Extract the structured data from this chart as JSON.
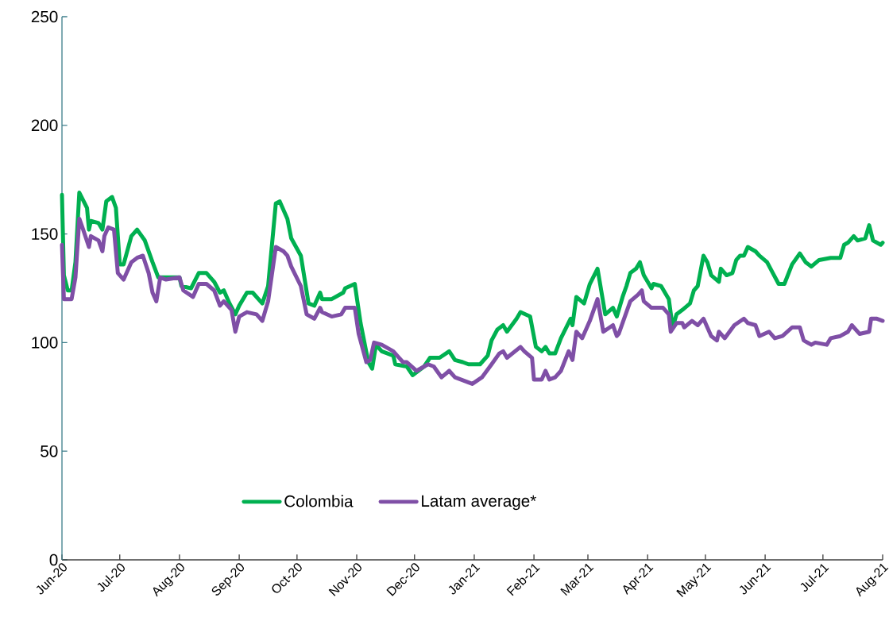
{
  "chart_data": {
    "type": "line",
    "ylim": [
      0,
      250
    ],
    "yticks": [
      0,
      50,
      100,
      150,
      200,
      250
    ],
    "xlim": [
      "2020-06-01",
      "2021-08-01"
    ],
    "xticks": [
      {
        "value": "2020-06-01",
        "label": "Jun-20"
      },
      {
        "value": "2020-07-01",
        "label": "Jul-20"
      },
      {
        "value": "2020-08-01",
        "label": "Aug-20"
      },
      {
        "value": "2020-09-01",
        "label": "Sep-20"
      },
      {
        "value": "2020-10-01",
        "label": "Oct-20"
      },
      {
        "value": "2020-11-01",
        "label": "Nov-20"
      },
      {
        "value": "2020-12-01",
        "label": "Dec-20"
      },
      {
        "value": "2021-01-01",
        "label": "Jan-21"
      },
      {
        "value": "2021-02-01",
        "label": "Feb-21"
      },
      {
        "value": "2021-03-01",
        "label": "Mar-21"
      },
      {
        "value": "2021-04-01",
        "label": "Apr-21"
      },
      {
        "value": "2021-05-01",
        "label": "May-21"
      },
      {
        "value": "2021-06-01",
        "label": "Jun-21"
      },
      {
        "value": "2021-07-01",
        "label": "Jul-21"
      },
      {
        "value": "2021-08-01",
        "label": "Aug-21"
      }
    ],
    "legend": "bottom",
    "line_style": "solid",
    "grid": false,
    "series": [
      {
        "name": "Colombia",
        "color": "#00b050",
        "x": [
          "2020-06-01",
          "2020-06-02",
          "2020-06-04",
          "2020-06-06",
          "2020-06-08",
          "2020-06-10",
          "2020-06-14",
          "2020-06-15",
          "2020-06-16",
          "2020-06-20",
          "2020-06-22",
          "2020-06-24",
          "2020-06-27",
          "2020-06-29",
          "2020-07-01",
          "2020-07-03",
          "2020-07-07",
          "2020-07-10",
          "2020-07-14",
          "2020-07-18",
          "2020-07-21",
          "2020-08-01",
          "2020-08-02",
          "2020-08-07",
          "2020-08-11",
          "2020-08-15",
          "2020-08-19",
          "2020-08-22",
          "2020-08-24",
          "2020-08-27",
          "2020-08-30",
          "2020-09-01",
          "2020-09-05",
          "2020-09-08",
          "2020-09-13",
          "2020-09-16",
          "2020-09-20",
          "2020-09-22",
          "2020-09-26",
          "2020-09-28",
          "2020-10-03",
          "2020-10-07",
          "2020-10-10",
          "2020-10-13",
          "2020-10-14",
          "2020-10-19",
          "2020-10-25",
          "2020-10-26",
          "2020-10-31",
          "2020-11-03",
          "2020-11-07",
          "2020-11-09",
          "2020-11-11",
          "2020-11-14",
          "2020-11-20",
          "2020-11-21",
          "2020-11-27",
          "2020-11-30",
          "2020-12-06",
          "2020-12-09",
          "2020-12-14",
          "2020-12-19",
          "2020-12-22",
          "2020-12-26",
          "2020-12-29",
          "2021-01-04",
          "2021-01-08",
          "2021-01-10",
          "2021-01-13",
          "2021-01-16",
          "2021-01-18",
          "2021-01-23",
          "2021-01-25",
          "2021-01-30",
          "2021-02-02",
          "2021-02-05",
          "2021-02-07",
          "2021-02-09",
          "2021-02-12",
          "2021-02-15",
          "2021-02-20",
          "2021-02-21",
          "2021-02-23",
          "2021-02-27",
          "2021-03-02",
          "2021-03-06",
          "2021-03-10",
          "2021-03-14",
          "2021-03-16",
          "2021-03-19",
          "2021-03-21",
          "2021-03-23",
          "2021-03-26",
          "2021-03-28",
          "2021-03-30",
          "2021-04-03",
          "2021-04-04",
          "2021-04-08",
          "2021-04-12",
          "2021-04-14",
          "2021-04-16",
          "2021-04-19",
          "2021-04-23",
          "2021-04-25",
          "2021-04-27",
          "2021-04-30",
          "2021-05-02",
          "2021-05-04",
          "2021-05-08",
          "2021-05-09",
          "2021-05-12",
          "2021-05-15",
          "2021-05-17",
          "2021-05-19",
          "2021-05-21",
          "2021-05-23",
          "2021-05-27",
          "2021-05-29",
          "2021-06-02",
          "2021-06-05",
          "2021-06-08",
          "2021-06-11",
          "2021-06-15",
          "2021-06-19",
          "2021-06-22",
          "2021-06-25",
          "2021-06-29",
          "2021-07-05",
          "2021-07-10",
          "2021-07-12",
          "2021-07-14",
          "2021-07-17",
          "2021-07-19",
          "2021-07-23",
          "2021-07-25",
          "2021-07-27",
          "2021-07-31",
          "2021-08-01"
        ],
        "values": [
          168,
          131,
          124,
          124,
          137,
          169,
          162,
          152,
          156,
          155,
          152,
          165,
          167,
          162,
          136,
          136,
          149,
          152,
          147,
          137,
          130,
          130,
          126,
          125,
          132,
          132,
          128,
          123,
          124,
          118,
          113,
          117,
          123,
          123,
          118,
          126,
          164,
          165,
          157,
          148,
          140,
          118,
          117,
          123,
          120,
          120,
          123,
          125,
          127,
          109,
          91,
          88,
          99,
          96,
          94,
          90,
          89,
          85,
          89,
          93,
          93,
          96,
          92,
          91,
          90,
          90,
          94,
          101,
          106,
          108,
          105,
          111,
          114,
          112,
          98,
          96,
          98,
          95,
          95,
          102,
          111,
          108,
          121,
          118,
          127,
          134,
          113,
          116,
          112,
          121,
          126,
          132,
          134,
          137,
          131,
          125,
          127,
          126,
          120,
          107,
          113,
          115,
          118,
          124,
          126,
          140,
          137,
          131,
          128,
          134,
          131,
          132,
          138,
          140,
          140,
          144,
          142,
          140,
          137,
          132,
          127,
          127,
          136,
          141,
          137,
          135,
          138,
          139,
          139,
          145,
          146,
          149,
          147,
          148,
          154,
          147,
          145,
          146
        ]
      },
      {
        "name": "Latam average*",
        "color": "#7f4fa6",
        "x": [
          "2020-06-01",
          "2020-06-02",
          "2020-06-06",
          "2020-06-08",
          "2020-06-10",
          "2020-06-12",
          "2020-06-15",
          "2020-06-16",
          "2020-06-20",
          "2020-06-22",
          "2020-06-23",
          "2020-06-25",
          "2020-06-28",
          "2020-06-30",
          "2020-07-03",
          "2020-07-07",
          "2020-07-10",
          "2020-07-13",
          "2020-07-16",
          "2020-07-18",
          "2020-07-20",
          "2020-07-22",
          "2020-07-25",
          "2020-08-01",
          "2020-08-03",
          "2020-08-08",
          "2020-08-11",
          "2020-08-15",
          "2020-08-19",
          "2020-08-22",
          "2020-08-24",
          "2020-08-28",
          "2020-08-30",
          "2020-09-01",
          "2020-09-05",
          "2020-09-10",
          "2020-09-13",
          "2020-09-16",
          "2020-09-20",
          "2020-09-24",
          "2020-09-26",
          "2020-09-28",
          "2020-10-03",
          "2020-10-06",
          "2020-10-10",
          "2020-10-13",
          "2020-10-14",
          "2020-10-19",
          "2020-10-24",
          "2020-10-26",
          "2020-10-31",
          "2020-11-02",
          "2020-11-06",
          "2020-11-08",
          "2020-11-10",
          "2020-11-14",
          "2020-11-20",
          "2020-11-23",
          "2020-11-25",
          "2020-11-27",
          "2020-12-02",
          "2020-12-08",
          "2020-12-11",
          "2020-12-15",
          "2020-12-19",
          "2020-12-22",
          "2020-12-28",
          "2020-12-31",
          "2021-01-05",
          "2021-01-10",
          "2021-01-14",
          "2021-01-16",
          "2021-01-18",
          "2021-01-25",
          "2021-01-27",
          "2021-01-31",
          "2021-02-01",
          "2021-02-05",
          "2021-02-07",
          "2021-02-09",
          "2021-02-12",
          "2021-02-15",
          "2021-02-19",
          "2021-02-21",
          "2021-02-23",
          "2021-02-26",
          "2021-03-02",
          "2021-03-06",
          "2021-03-09",
          "2021-03-14",
          "2021-03-16",
          "2021-03-17",
          "2021-03-23",
          "2021-03-27",
          "2021-03-29",
          "2021-03-30",
          "2021-04-03",
          "2021-04-05",
          "2021-04-09",
          "2021-04-12",
          "2021-04-13",
          "2021-04-16",
          "2021-04-19",
          "2021-04-20",
          "2021-04-24",
          "2021-04-27",
          "2021-04-30",
          "2021-05-04",
          "2021-05-07",
          "2021-05-08",
          "2021-05-11",
          "2021-05-16",
          "2021-05-21",
          "2021-05-23",
          "2021-05-27",
          "2021-05-29",
          "2021-06-03",
          "2021-06-06",
          "2021-06-10",
          "2021-06-15",
          "2021-06-19",
          "2021-06-21",
          "2021-06-25",
          "2021-06-27",
          "2021-07-03",
          "2021-07-05",
          "2021-07-10",
          "2021-07-14",
          "2021-07-16",
          "2021-07-20",
          "2021-07-25",
          "2021-07-26",
          "2021-07-29",
          "2021-08-01"
        ],
        "values": [
          145,
          120,
          120,
          130,
          157,
          152,
          144,
          149,
          147,
          142,
          149,
          153,
          152,
          132,
          129,
          137,
          139,
          140,
          132,
          123,
          119,
          130,
          129,
          130,
          124,
          121,
          127,
          127,
          124,
          117,
          119,
          115,
          105,
          112,
          114,
          113,
          110,
          119,
          144,
          142,
          140,
          135,
          126,
          113,
          111,
          116,
          114,
          112,
          113,
          116,
          116,
          104,
          91,
          92,
          100,
          99,
          96,
          93,
          91,
          91,
          87,
          90,
          89,
          84,
          87,
          84,
          82,
          81,
          84,
          90,
          95,
          96,
          93,
          98,
          96,
          93,
          83,
          83,
          87,
          83,
          84,
          87,
          96,
          92,
          105,
          102,
          110,
          120,
          105,
          108,
          103,
          104,
          119,
          122,
          124,
          119,
          116,
          116,
          116,
          113,
          105,
          109,
          109,
          107,
          110,
          108,
          111,
          103,
          101,
          105,
          102,
          108,
          111,
          109,
          108,
          103,
          105,
          102,
          103,
          107,
          107,
          101,
          99,
          100,
          99,
          102,
          103,
          105,
          108,
          104,
          105,
          111,
          111,
          110
        ]
      }
    ]
  }
}
